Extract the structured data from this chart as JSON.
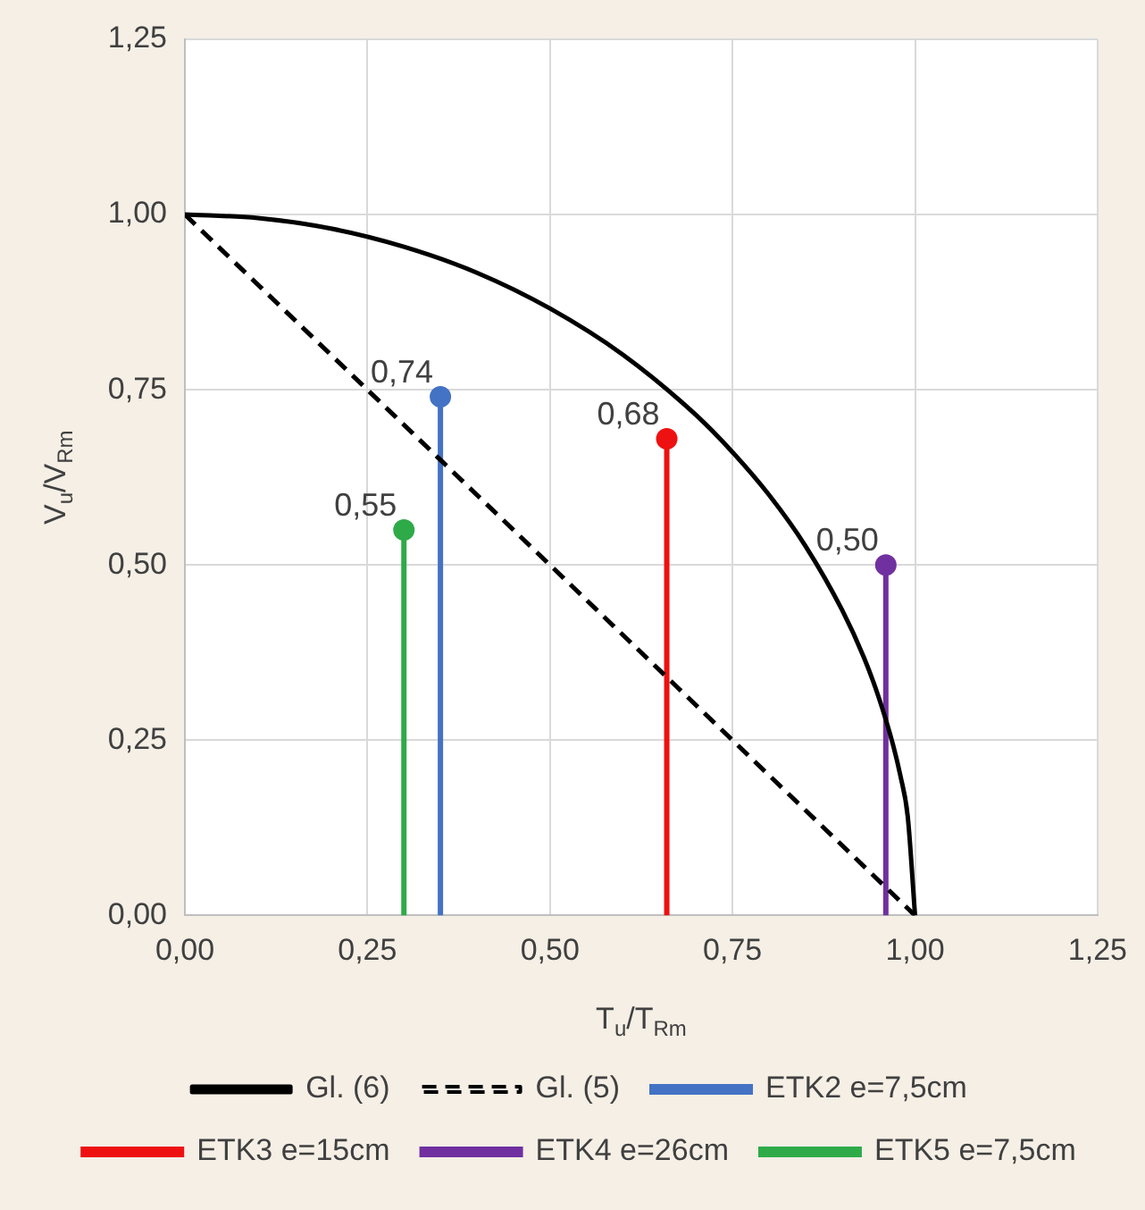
{
  "chart_data": {
    "type": "lollipop",
    "xlabel": "T$_{u}$/T$_{Rm}$",
    "ylabel": "V$_{u}$/V$_{Rm}$",
    "xlim": [
      0,
      1.25
    ],
    "ylim": [
      0,
      1.25
    ],
    "xticks": [
      {
        "value": 0,
        "label": "0,00"
      },
      {
        "value": 0.25,
        "label": "0,25"
      },
      {
        "value": 0.5,
        "label": "0,50"
      },
      {
        "value": 0.75,
        "label": "0,75"
      },
      {
        "value": 1,
        "label": "1,00"
      },
      {
        "value": 1.25,
        "label": "1,25"
      }
    ],
    "yticks": [
      {
        "value": 0,
        "label": "0,00"
      },
      {
        "value": 0.25,
        "label": "0,25"
      },
      {
        "value": 0.5,
        "label": "0,50"
      },
      {
        "value": 0.75,
        "label": "0,75"
      },
      {
        "value": 1,
        "label": "1,00"
      },
      {
        "value": 1.25,
        "label": "1,25"
      }
    ],
    "grid": true,
    "legend": "bottom",
    "marker": "circle",
    "series": [
      {
        "name": "Gl. (6)",
        "type": "line",
        "marker": "none",
        "line_style": "solid",
        "color": "#000000",
        "x": [
          0,
          0.1,
          0.2,
          0.3,
          0.4,
          0.5,
          0.6,
          0.7,
          0.75,
          0.8,
          0.85,
          0.9,
          0.93,
          0.95,
          0.97,
          0.98,
          0.99,
          1.0
        ],
        "values": [
          1,
          0.995,
          0.98,
          0.954,
          0.917,
          0.866,
          0.8,
          0.714,
          0.661,
          0.6,
          0.527,
          0.436,
          0.368,
          0.312,
          0.243,
          0.199,
          0.141,
          0
        ]
      },
      {
        "name": "Gl. (5)",
        "type": "line",
        "marker": "none",
        "line_style": "dashed",
        "color": "#000000",
        "x": [
          0,
          1
        ],
        "values": [
          1,
          0
        ]
      },
      {
        "name": "ETK2 e=7,5cm",
        "color": "#4472c4",
        "x": [
          0.35
        ],
        "values": [
          0.74
        ],
        "value_labels": [
          "0,74"
        ]
      },
      {
        "name": "ETK3 e=15cm",
        "color": "#ee1111",
        "x": [
          0.66
        ],
        "values": [
          0.68
        ],
        "value_labels": [
          "0,68"
        ]
      },
      {
        "name": "ETK4 e=26cm",
        "color": "#7030a0",
        "x": [
          0.96
        ],
        "values": [
          0.5
        ],
        "value_labels": [
          "0,50"
        ]
      },
      {
        "name": "ETK5 e=7,5cm",
        "color": "#2eab48",
        "x": [
          0.3
        ],
        "values": [
          0.55
        ],
        "value_labels": [
          "0,55"
        ]
      }
    ]
  }
}
